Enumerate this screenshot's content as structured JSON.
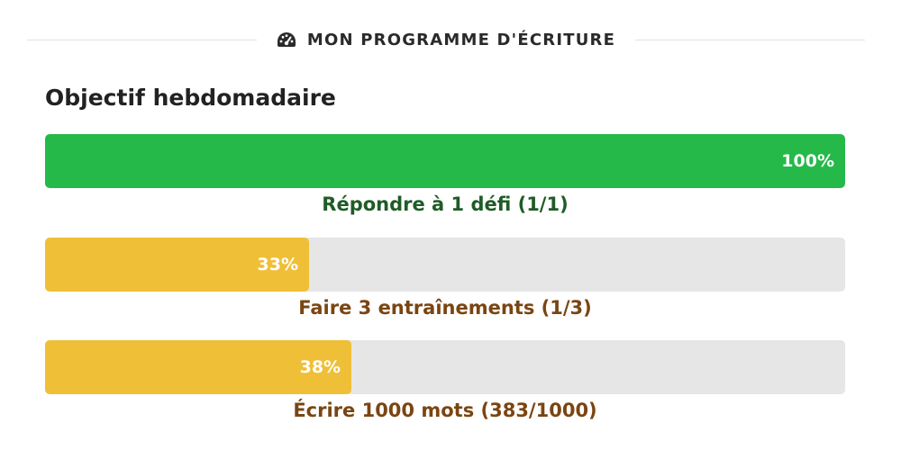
{
  "header": {
    "icon": "tachometer-icon",
    "title": "MON PROGRAMME D'ÉCRITURE"
  },
  "section_title": "Objectif hebdomadaire",
  "colors": {
    "complete": "#25b94a",
    "in_progress": "#f0bf38",
    "complete_text": "#1f5c26",
    "in_progress_text": "#7a4512",
    "track": "#e6e6e6"
  },
  "goals": [
    {
      "percent_label": "100%",
      "progress": 1.0,
      "label": "Répondre à 1 défi (1/1)",
      "status": "complete"
    },
    {
      "percent_label": "33%",
      "progress": 0.33,
      "label": "Faire 3 entraînements (1/3)",
      "status": "in_progress"
    },
    {
      "percent_label": "38%",
      "progress": 0.383,
      "label": "Écrire 1000 mots (383/1000)",
      "status": "in_progress"
    }
  ]
}
